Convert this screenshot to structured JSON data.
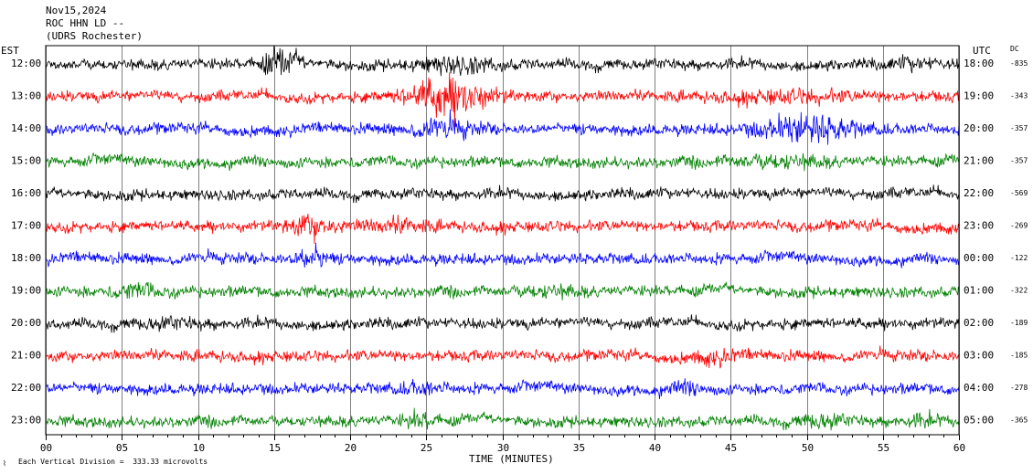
{
  "header": {
    "date": "Nov15,2024",
    "station": "ROC HHN LD --",
    "location": "(UDRS Rochester)"
  },
  "left_axis_label": "EST",
  "right_axis_label": "UTC",
  "dc_label": "DC",
  "footer": {
    "scale_note": "Each Vertical Division =  333.33 microvolts"
  },
  "chart_data": {
    "type": "line",
    "title": "",
    "xlabel": "TIME (MINUTES)",
    "ylabel": "",
    "xlim": [
      0,
      60
    ],
    "x_ticks": [
      "00",
      "05",
      "10",
      "15",
      "20",
      "25",
      "30",
      "35",
      "40",
      "45",
      "50",
      "55",
      "60"
    ],
    "trace_colors": [
      "#000000",
      "#ff0000",
      "#0000ff",
      "#008000"
    ],
    "rows": [
      {
        "est": "12:00",
        "utc": "18:00",
        "dc": "-835"
      },
      {
        "est": "13:00",
        "utc": "19:00",
        "dc": "-343"
      },
      {
        "est": "14:00",
        "utc": "20:00",
        "dc": "-357"
      },
      {
        "est": "15:00",
        "utc": "21:00",
        "dc": "-357"
      },
      {
        "est": "16:00",
        "utc": "22:00",
        "dc": "-569"
      },
      {
        "est": "17:00",
        "utc": "23:00",
        "dc": "-269"
      },
      {
        "est": "18:00",
        "utc": "00:00",
        "dc": "-122"
      },
      {
        "est": "19:00",
        "utc": "01:00",
        "dc": "-322"
      },
      {
        "est": "20:00",
        "utc": "02:00",
        "dc": "-189"
      },
      {
        "est": "21:00",
        "utc": "03:00",
        "dc": "-185"
      },
      {
        "est": "22:00",
        "utc": "04:00",
        "dc": "-278"
      },
      {
        "est": "23:00",
        "utc": "05:00",
        "dc": "-365"
      }
    ]
  }
}
